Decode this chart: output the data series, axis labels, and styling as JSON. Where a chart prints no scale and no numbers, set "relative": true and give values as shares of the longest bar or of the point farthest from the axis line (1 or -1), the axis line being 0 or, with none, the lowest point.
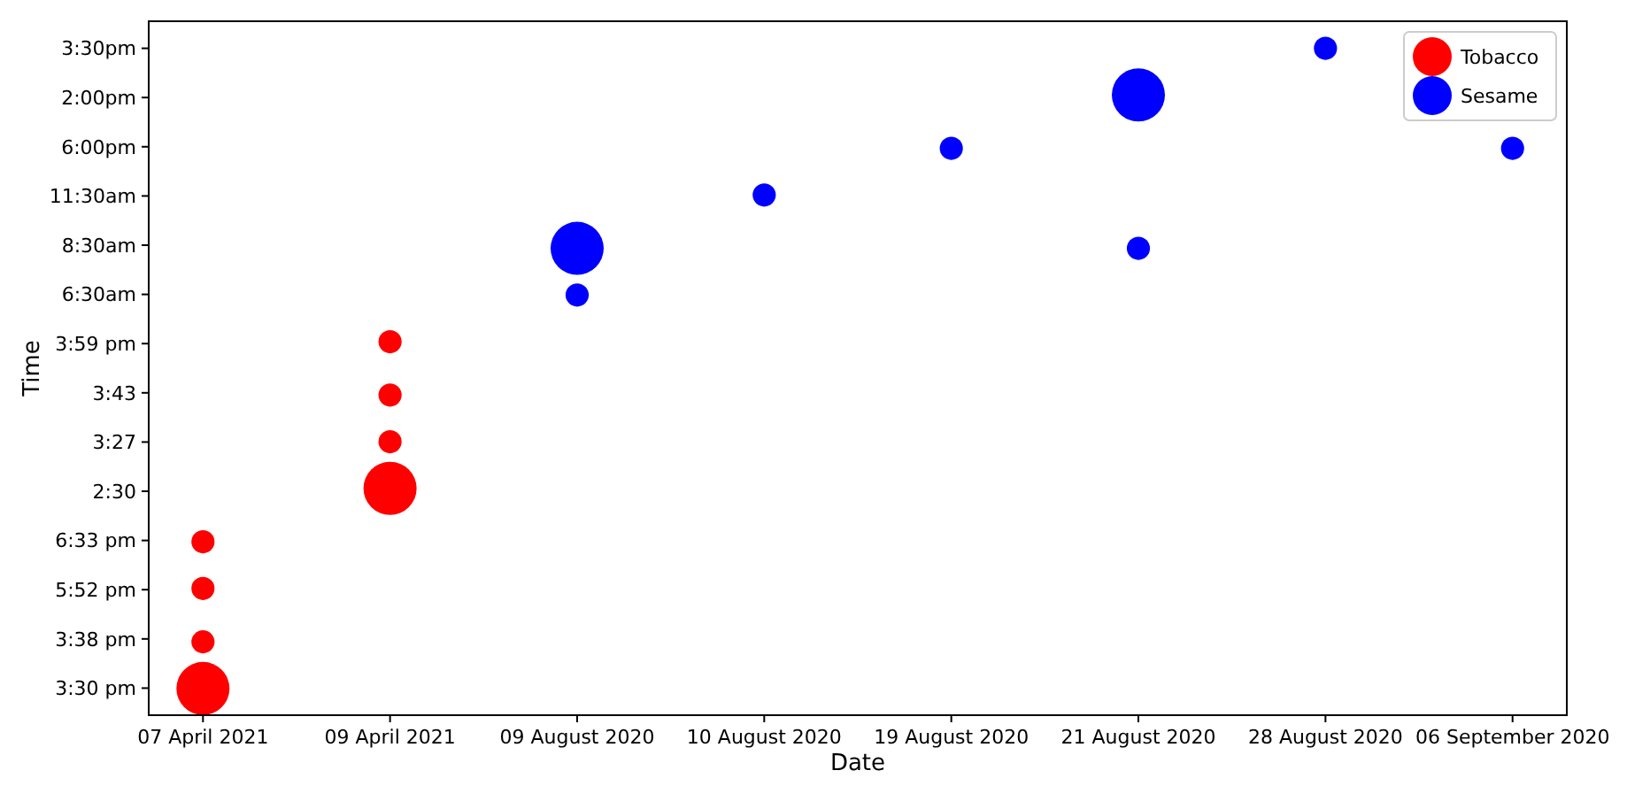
{
  "chart_data": {
    "type": "bubble",
    "xlabel": "Date",
    "ylabel": "Time",
    "categories": [
      "07 April 2021",
      "09 April 2021",
      "09 August 2020",
      "10 August 2020",
      "19 August 2020",
      "21 August 2020",
      "28 August 2020",
      "06 September 2020"
    ],
    "y_categories": [
      "3:30pm",
      "2:00pm",
      "6:00pm",
      "11:30am",
      "8:30am",
      "6:30am",
      "3:59 pm",
      "3:43",
      "3:27",
      "2:30",
      "6:33 pm",
      "5:52 pm",
      "3:38 pm",
      "3:30 pm"
    ],
    "series": [
      {
        "name": "Tobacco",
        "color": "#ff0000",
        "x": [
          "07 April 2021",
          "07 April 2021",
          "07 April 2021",
          "07 April 2021",
          "09 April 2021",
          "09 April 2021",
          "09 April 2021",
          "09 April 2021"
        ],
        "values": [
          0.04,
          0.11,
          0.19,
          0.26,
          0.34,
          0.41,
          0.48,
          0.56
        ],
        "sizes": [
          1,
          0.19,
          0.19,
          0.19,
          1,
          0.19,
          0.19,
          0.19
        ]
      },
      {
        "name": "Sesame",
        "color": "#0000ff",
        "x": [
          "09 August 2020",
          "09 August 2020",
          "10 August 2020",
          "19 August 2020",
          "21 August 2020",
          "21 August 2020",
          "28 August 2020",
          "06 September 2020"
        ],
        "values": [
          0.63,
          0.7,
          0.78,
          0.85,
          0.7,
          0.93,
          1,
          0.85
        ],
        "sizes": [
          0.19,
          1,
          0.19,
          0.19,
          0.19,
          1,
          0.19,
          0.19
        ]
      }
    ],
    "marker": "circle",
    "legend": "top right",
    "grid": false,
    "relative": true
  }
}
